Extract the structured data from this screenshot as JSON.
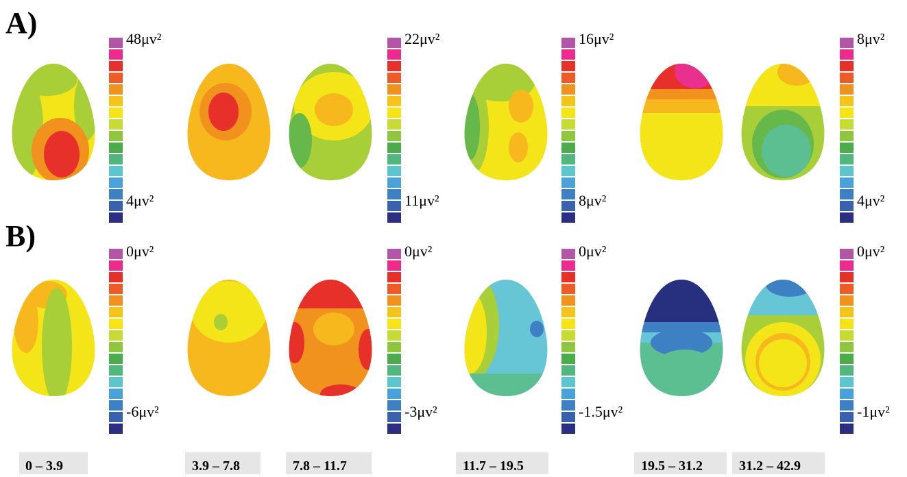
{
  "panels": [
    {
      "label": "A)"
    },
    {
      "label": "B)"
    }
  ],
  "colorbar_colors": [
    "#b456a8",
    "#ee2a8c",
    "#e8302a",
    "#ef5a26",
    "#f2921e",
    "#f6c31a",
    "#f6e417",
    "#c6dc34",
    "#8ec63f",
    "#4dac4a",
    "#52b77d",
    "#5cc6ce",
    "#49a2d9",
    "#3d80c4",
    "#3862ae",
    "#2b2e83"
  ],
  "scales": {
    "A": [
      {
        "top": "48μv²",
        "bottom": "4μv²"
      },
      {
        "top": "22μv²",
        "bottom": "11μv²"
      },
      {
        "top": "16μv²",
        "bottom": "8μv²"
      },
      {
        "top": "8μv²",
        "bottom": "4μv²"
      }
    ],
    "B": [
      {
        "top": "0μv²",
        "bottom": "-6μv²"
      },
      {
        "top": "0μv²",
        "bottom": "-3μv²"
      },
      {
        "top": "0μv²",
        "bottom": "-1.5μv²"
      },
      {
        "top": "0μv²",
        "bottom": "-1μv²"
      }
    ]
  },
  "frequency_bands": [
    "0 – 3.9",
    "3.9 – 7.8",
    "7.8 – 11.7",
    "11.7 – 19.5",
    "19.5 – 31.2",
    "31.2 – 42.9"
  ],
  "map_colors": {
    "magenta": "#e8308c",
    "red": "#e8302a",
    "orange": "#f2921e",
    "amber": "#f7b81d",
    "yellow": "#f3e517",
    "lightgreen": "#a8cf38",
    "green": "#66b84a",
    "teal": "#5cbf91",
    "cyan": "#66c6d6",
    "blue": "#3d80c4",
    "navy": "#26307e"
  }
}
